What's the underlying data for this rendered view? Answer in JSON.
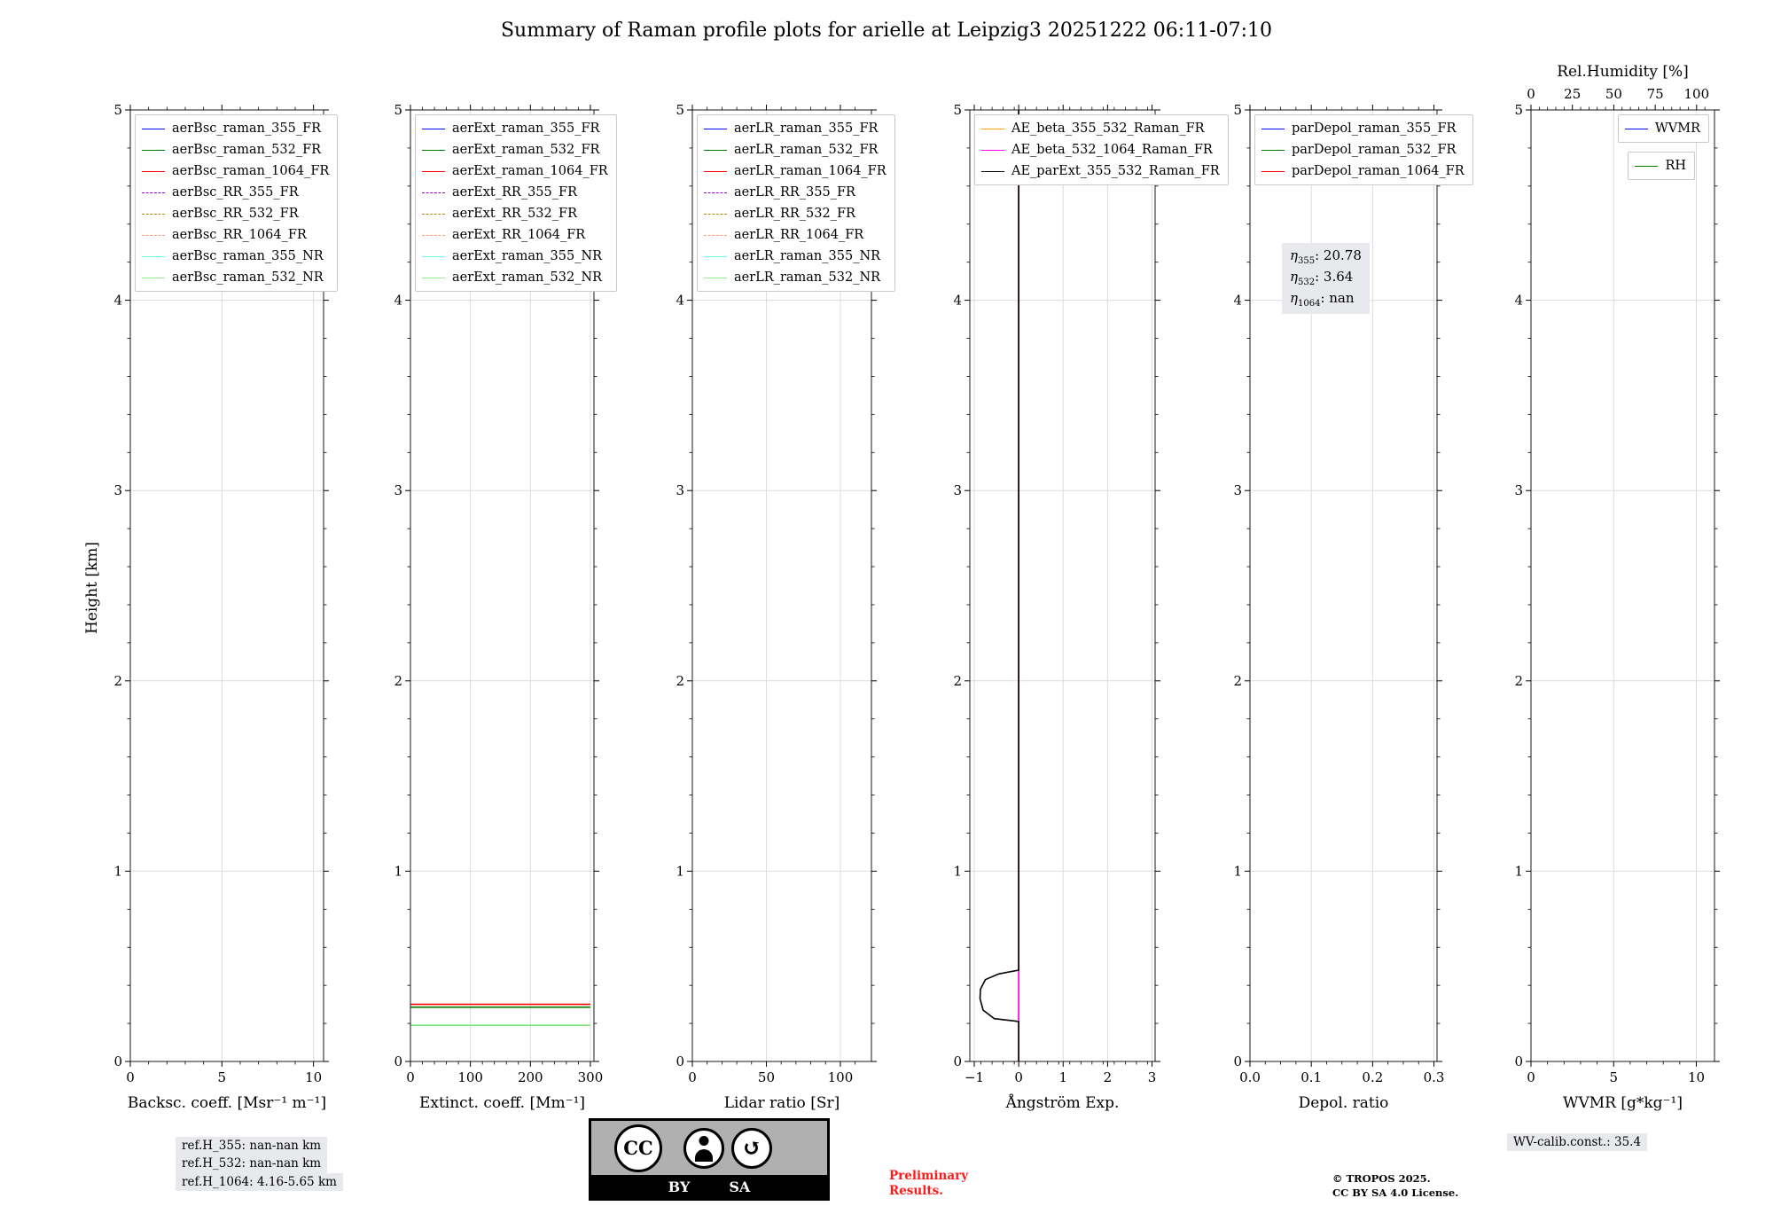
{
  "title": "Summary of Raman profile plots for arielle at Leipzig3 20251222 06:11-07:10",
  "ylabel": "Height [km]",
  "footer": {
    "ref_lines": [
      "ref.H_355: nan-nan km",
      "ref.H_532: nan-nan km",
      "ref.H_1064: 4.16-5.65 km"
    ],
    "badge": {
      "cc": "CC",
      "by": "BY",
      "sa": "SA",
      "arrow": "↺"
    },
    "preliminary_1": "Preliminary",
    "preliminary_2": "Results.",
    "tropos_1": "© TROPOS 2025.",
    "tropos_2": "CC BY SA 4.0 License.",
    "wv_calib": "WV-calib.const.: 35.4"
  },
  "chart_data": [
    {
      "id": "backscatter",
      "type": "line",
      "xlabel": "Backsc. coeff. [Msr⁻¹ m⁻¹]",
      "xlim": [
        0,
        10.55
      ],
      "xticks": [
        {
          "v": 0,
          "l": "0"
        },
        {
          "v": 5,
          "l": "5"
        },
        {
          "v": 10,
          "l": "10"
        }
      ],
      "xminor": 1,
      "ylim": [
        0,
        5
      ],
      "yticks": [
        0,
        1,
        2,
        3,
        4,
        5
      ],
      "yminor": 0.2,
      "legend": [
        {
          "label": "aerBsc_raman_355_FR",
          "color": "#0000ff",
          "style": "solid"
        },
        {
          "label": "aerBsc_raman_532_FR",
          "color": "#008000",
          "style": "solid"
        },
        {
          "label": "aerBsc_raman_1064_FR",
          "color": "#ff0000",
          "style": "solid"
        },
        {
          "label": "aerBsc_RR_355_FR",
          "color": "#9400d3",
          "style": "dashed"
        },
        {
          "label": "aerBsc_RR_532_FR",
          "color": "#b8860b",
          "style": "dashed"
        },
        {
          "label": "aerBsc_RR_1064_FR",
          "color": "#ffa07a",
          "style": "dashed"
        },
        {
          "label": "aerBsc_raman_355_NR",
          "color": "#66ffff",
          "style": "solid"
        },
        {
          "label": "aerBsc_raman_532_NR",
          "color": "#90ee90",
          "style": "solid"
        }
      ],
      "series": []
    },
    {
      "id": "extinction",
      "type": "line",
      "xlabel": "Extinct. coeff. [Mm⁻¹]",
      "xlim": [
        0,
        306
      ],
      "xticks": [
        {
          "v": 0,
          "l": "0"
        },
        {
          "v": 100,
          "l": "100"
        },
        {
          "v": 200,
          "l": "200"
        },
        {
          "v": 300,
          "l": "300"
        }
      ],
      "xminor": 20,
      "ylim": [
        0,
        5
      ],
      "yticks": [
        0,
        1,
        2,
        3,
        4,
        5
      ],
      "yminor": 0.2,
      "legend": [
        {
          "label": "aerExt_raman_355_FR",
          "color": "#0000ff",
          "style": "solid"
        },
        {
          "label": "aerExt_raman_532_FR",
          "color": "#008000",
          "style": "solid"
        },
        {
          "label": "aerExt_raman_1064_FR",
          "color": "#ff0000",
          "style": "solid"
        },
        {
          "label": "aerExt_RR_355_FR",
          "color": "#9400d3",
          "style": "dashed"
        },
        {
          "label": "aerExt_RR_532_FR",
          "color": "#b8860b",
          "style": "dashed"
        },
        {
          "label": "aerExt_RR_1064_FR",
          "color": "#ffa07a",
          "style": "dashed"
        },
        {
          "label": "aerExt_raman_355_NR",
          "color": "#66ffff",
          "style": "solid"
        },
        {
          "label": "aerExt_raman_532_NR",
          "color": "#90ee90",
          "style": "solid"
        }
      ],
      "series": [
        {
          "name": "aerExt_raman_1064_FR",
          "color": "#ff0000",
          "points": [
            [
              0,
              0.3
            ],
            [
              300,
              0.3
            ]
          ]
        },
        {
          "name": "aerExt_raman_532_FR",
          "color": "#008000",
          "points": [
            [
              0,
              0.285
            ],
            [
              300,
              0.285
            ]
          ]
        },
        {
          "name": "aerExt_raman_532_NR",
          "color": "#7ce87c",
          "points": [
            [
              0,
              0.19
            ],
            [
              300,
              0.19
            ]
          ]
        }
      ]
    },
    {
      "id": "lidar-ratio",
      "type": "line",
      "xlabel": "Lidar ratio [Sr]",
      "xlim": [
        0,
        121
      ],
      "xticks": [
        {
          "v": 0,
          "l": "0"
        },
        {
          "v": 50,
          "l": "50"
        },
        {
          "v": 100,
          "l": "100"
        }
      ],
      "xminor": 10,
      "ylim": [
        0,
        5
      ],
      "yticks": [
        0,
        1,
        2,
        3,
        4,
        5
      ],
      "yminor": 0.2,
      "legend": [
        {
          "label": "aerLR_raman_355_FR",
          "color": "#0000ff",
          "style": "solid"
        },
        {
          "label": "aerLR_raman_532_FR",
          "color": "#008000",
          "style": "solid"
        },
        {
          "label": "aerLR_raman_1064_FR",
          "color": "#ff0000",
          "style": "solid"
        },
        {
          "label": "aerLR_RR_355_FR",
          "color": "#9400d3",
          "style": "dashed"
        },
        {
          "label": "aerLR_RR_532_FR",
          "color": "#b8860b",
          "style": "dashed"
        },
        {
          "label": "aerLR_RR_1064_FR",
          "color": "#ffa07a",
          "style": "dashed"
        },
        {
          "label": "aerLR_raman_355_NR",
          "color": "#66ffff",
          "style": "solid"
        },
        {
          "label": "aerLR_raman_532_NR",
          "color": "#90ee90",
          "style": "solid"
        }
      ],
      "series": []
    },
    {
      "id": "angstrom",
      "type": "line",
      "xlabel": "Ångström Exp.",
      "xlim": [
        -1.1,
        3.07
      ],
      "xticks": [
        {
          "v": -1,
          "l": "−1"
        },
        {
          "v": 0,
          "l": "0"
        },
        {
          "v": 1,
          "l": "1"
        },
        {
          "v": 2,
          "l": "2"
        },
        {
          "v": 3,
          "l": "3"
        }
      ],
      "xminor": 0.25,
      "ylim": [
        0,
        5
      ],
      "yticks": [
        0,
        1,
        2,
        3,
        4,
        5
      ],
      "yminor": 0.2,
      "legend": [
        {
          "label": "AE_beta_355_532_Raman_FR",
          "color": "#ffa500",
          "style": "solid"
        },
        {
          "label": "AE_beta_532_1064_Raman_FR",
          "color": "#ff00ff",
          "style": "solid"
        },
        {
          "label": "AE_parExt_355_532_Raman_FR",
          "color": "#000000",
          "style": "solid"
        }
      ],
      "series": [
        {
          "name": "AE_beta_355_532_Raman_FR",
          "color": "#ffa500",
          "points": [
            [
              0,
              0
            ],
            [
              0,
              5
            ]
          ]
        },
        {
          "name": "AE_beta_532_1064_Raman_FR",
          "color": "#ff00ff",
          "points": [
            [
              0,
              0
            ],
            [
              0,
              5
            ]
          ]
        },
        {
          "name": "AE_parExt_355_532_Raman_FR",
          "color": "#000000",
          "points": [
            [
              0,
              5
            ],
            [
              0,
              0.48
            ],
            [
              -0.45,
              0.46
            ],
            [
              -0.75,
              0.43
            ],
            [
              -0.86,
              0.38
            ],
            [
              -0.87,
              0.33
            ],
            [
              -0.8,
              0.27
            ],
            [
              -0.55,
              0.225
            ],
            [
              0,
              0.21
            ],
            [
              0,
              0
            ]
          ]
        }
      ]
    },
    {
      "id": "depol",
      "type": "line",
      "xlabel": "Depol. ratio",
      "xlim": [
        0,
        0.305
      ],
      "xticks": [
        {
          "v": 0,
          "l": "0.0"
        },
        {
          "v": 0.1,
          "l": "0.1"
        },
        {
          "v": 0.2,
          "l": "0.2"
        },
        {
          "v": 0.3,
          "l": "0.3"
        }
      ],
      "xminor": 0.025,
      "ylim": [
        0,
        5
      ],
      "yticks": [
        0,
        1,
        2,
        3,
        4,
        5
      ],
      "yminor": 0.2,
      "legend": [
        {
          "label": "parDepol_raman_355_FR",
          "color": "#0000ff",
          "style": "solid"
        },
        {
          "label": "parDepol_raman_532_FR",
          "color": "#008000",
          "style": "solid"
        },
        {
          "label": "parDepol_raman_1064_FR",
          "color": "#ff0000",
          "style": "solid"
        }
      ],
      "annotation": {
        "lines": [
          {
            "sym": "η",
            "sub": "355",
            "val": "20.78"
          },
          {
            "sym": "η",
            "sub": "532",
            "val": "3.64"
          },
          {
            "sym": "η",
            "sub": "1064",
            "val": "nan"
          }
        ]
      },
      "series": []
    },
    {
      "id": "wvmr",
      "type": "line",
      "xlabel": "WVMR [g*kg⁻¹]",
      "xlim": [
        0,
        11.1
      ],
      "xticks": [
        {
          "v": 0,
          "l": "0"
        },
        {
          "v": 5,
          "l": "5"
        },
        {
          "v": 10,
          "l": "10"
        }
      ],
      "xminor": 1,
      "ylim": [
        0,
        5
      ],
      "yticks": [
        0,
        1,
        2,
        3,
        4,
        5
      ],
      "yminor": 0.2,
      "top_axis": {
        "label": "Rel.Humidity [%]",
        "xlim": [
          0,
          110.8
        ],
        "ticks": [
          {
            "v": 0,
            "l": "0"
          },
          {
            "v": 25,
            "l": "25"
          },
          {
            "v": 50,
            "l": "50"
          },
          {
            "v": 75,
            "l": "75"
          },
          {
            "v": 100,
            "l": "100"
          }
        ],
        "minor": 5
      },
      "legend_boxes": [
        {
          "entries": [
            {
              "label": "WVMR",
              "color": "#0000ff",
              "style": "solid"
            }
          ]
        },
        {
          "entries": [
            {
              "label": "RH",
              "color": "#008000",
              "style": "solid"
            }
          ]
        }
      ],
      "series": []
    }
  ]
}
